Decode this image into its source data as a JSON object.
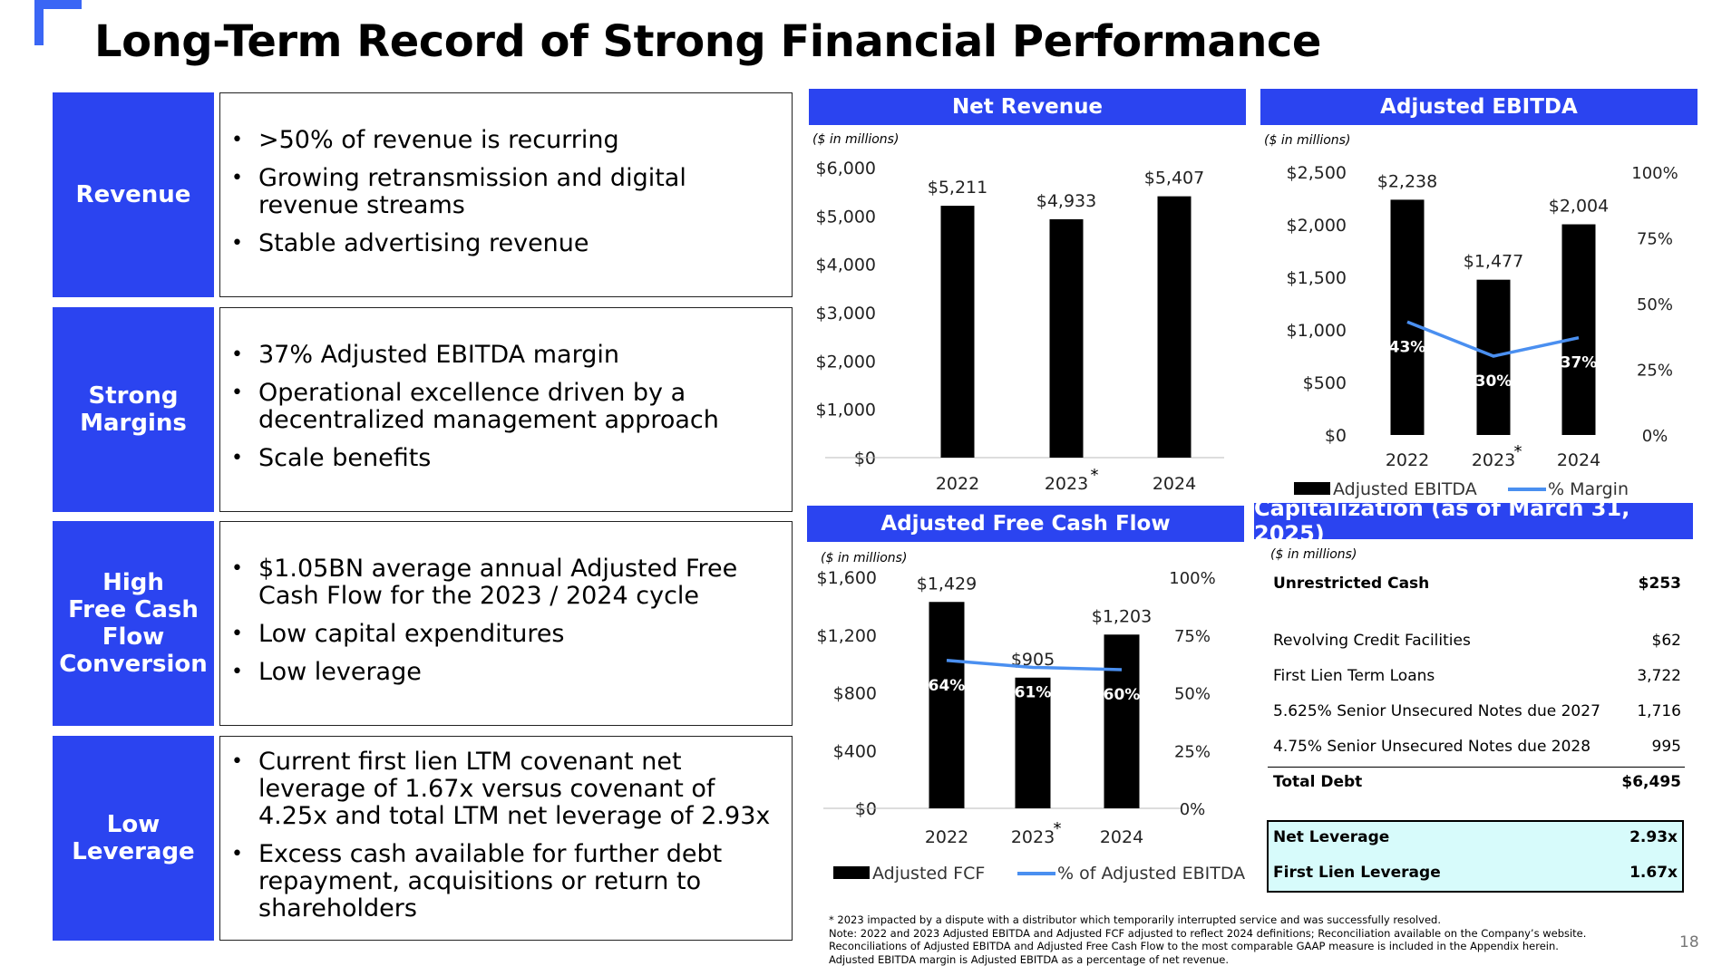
{
  "title": "Long-Term Record of Strong Financial Performance",
  "panels": [
    {
      "label": "Revenue",
      "bullets": [
        ">50% of revenue is recurring",
        "Growing retransmission and digital revenue streams",
        "Stable advertising revenue"
      ]
    },
    {
      "label": "Strong\nMargins",
      "bullets": [
        "37% Adjusted EBITDA margin",
        "Operational excellence driven by a decentralized management approach",
        "Scale benefits"
      ]
    },
    {
      "label": "High\nFree Cash\nFlow\nConversion",
      "bullets": [
        "$1.05BN average annual Adjusted Free Cash Flow for the 2023 / 2024 cycle",
        "Low capital expenditures",
        "Low leverage"
      ]
    },
    {
      "label": "Low\nLeverage",
      "bullets": [
        "Current first lien LTM covenant net leverage of 1.67x versus covenant of 4.25x and total LTM net leverage of 2.93x",
        "Excess cash available for further debt repayment, acquisitions or return to shareholders"
      ]
    }
  ],
  "colors": {
    "accent": "#2b44f0",
    "line": "#4a8ff0",
    "bar": "#000000",
    "leverage_bg": "#d7fbfb"
  },
  "chart_data": [
    {
      "type": "bar",
      "title": "Net Revenue",
      "units_note": "($ in millions)",
      "categories": [
        "2022",
        "2023",
        "2024"
      ],
      "category_marks": [
        "",
        "*",
        ""
      ],
      "values": [
        5211,
        4933,
        5407
      ],
      "value_labels": [
        "$5,211",
        "$4,933",
        "$5,407"
      ],
      "yticks": [
        "$0",
        "$1,000",
        "$2,000",
        "$3,000",
        "$4,000",
        "$5,000",
        "$6,000"
      ],
      "ylim": [
        0,
        6000
      ]
    },
    {
      "type": "bar",
      "title": "Adjusted EBITDA",
      "units_note": "($ in millions)",
      "categories": [
        "2022",
        "2023",
        "2024"
      ],
      "category_marks": [
        "",
        "*",
        ""
      ],
      "series": [
        {
          "name": "Adjusted EBITDA",
          "values": [
            2238,
            1477,
            2004
          ],
          "value_labels": [
            "$2,238",
            "$1,477",
            "$2,004"
          ]
        },
        {
          "name": "% Margin",
          "type": "line",
          "axis": "right",
          "values": [
            43,
            30,
            37
          ],
          "value_labels": [
            "43%",
            "30%",
            "37%"
          ]
        }
      ],
      "yticks": [
        "$0",
        "$500",
        "$1,000",
        "$1,500",
        "$2,000",
        "$2,500"
      ],
      "ylim": [
        0,
        2500
      ],
      "y2ticks": [
        "0%",
        "25%",
        "50%",
        "75%",
        "100%"
      ],
      "y2lim": [
        0,
        100
      ],
      "legend": "bottom"
    },
    {
      "type": "bar",
      "title": "Adjusted Free Cash Flow",
      "units_note": "($ in millions)",
      "categories": [
        "2022",
        "2023",
        "2024"
      ],
      "category_marks": [
        "",
        "*",
        ""
      ],
      "series": [
        {
          "name": "Adjusted FCF",
          "values": [
            1429,
            905,
            1203
          ],
          "value_labels": [
            "$1,429",
            "$905",
            "$1,203"
          ]
        },
        {
          "name": "% of Adjusted EBITDA",
          "type": "line",
          "axis": "right",
          "values": [
            64,
            61,
            60
          ],
          "value_labels": [
            "64%",
            "61%",
            "60%"
          ]
        }
      ],
      "yticks": [
        "$0",
        "$400",
        "$800",
        "$1,200",
        "$1,600"
      ],
      "ylim": [
        0,
        1600
      ],
      "y2ticks": [
        "0%",
        "25%",
        "50%",
        "75%",
        "100%"
      ],
      "y2lim": [
        0,
        100
      ],
      "legend": "bottom"
    }
  ],
  "capitalization": {
    "title": "Capitalization (as of March 31, 2025)",
    "units_note": "($ in millions)",
    "rows": [
      {
        "label": "Unrestricted Cash",
        "value": "$253",
        "bold": true
      },
      {
        "label": "Revolving Credit Facilities",
        "value": "$62",
        "bold": false
      },
      {
        "label": "First Lien Term Loans",
        "value": "3,722",
        "bold": false
      },
      {
        "label": "5.625% Senior Unsecured Notes due 2027",
        "value": "1,716",
        "bold": false
      },
      {
        "label": "4.75% Senior Unsecured Notes due 2028",
        "value": "995",
        "bold": false
      },
      {
        "label": "Total Debt",
        "value": "$6,495",
        "bold": true
      }
    ],
    "leverage": [
      {
        "label": "Net Leverage",
        "value": "2.93x"
      },
      {
        "label": "First Lien Leverage",
        "value": "1.67x"
      }
    ]
  },
  "footnotes": [
    "* 2023 impacted by a dispute with a distributor which temporarily interrupted service and was successfully resolved.",
    "Note:  2022 and 2023 Adjusted EBITDA and Adjusted FCF adjusted to reflect 2024 definitions;  Reconciliation available on the Company’s website.",
    "Reconciliations of Adjusted EBITDA and Adjusted Free Cash Flow to the most comparable GAAP measure is included in the Appendix herein.",
    "Adjusted EBITDA margin is Adjusted EBITDA as a percentage of net revenue."
  ],
  "page_number": "18"
}
